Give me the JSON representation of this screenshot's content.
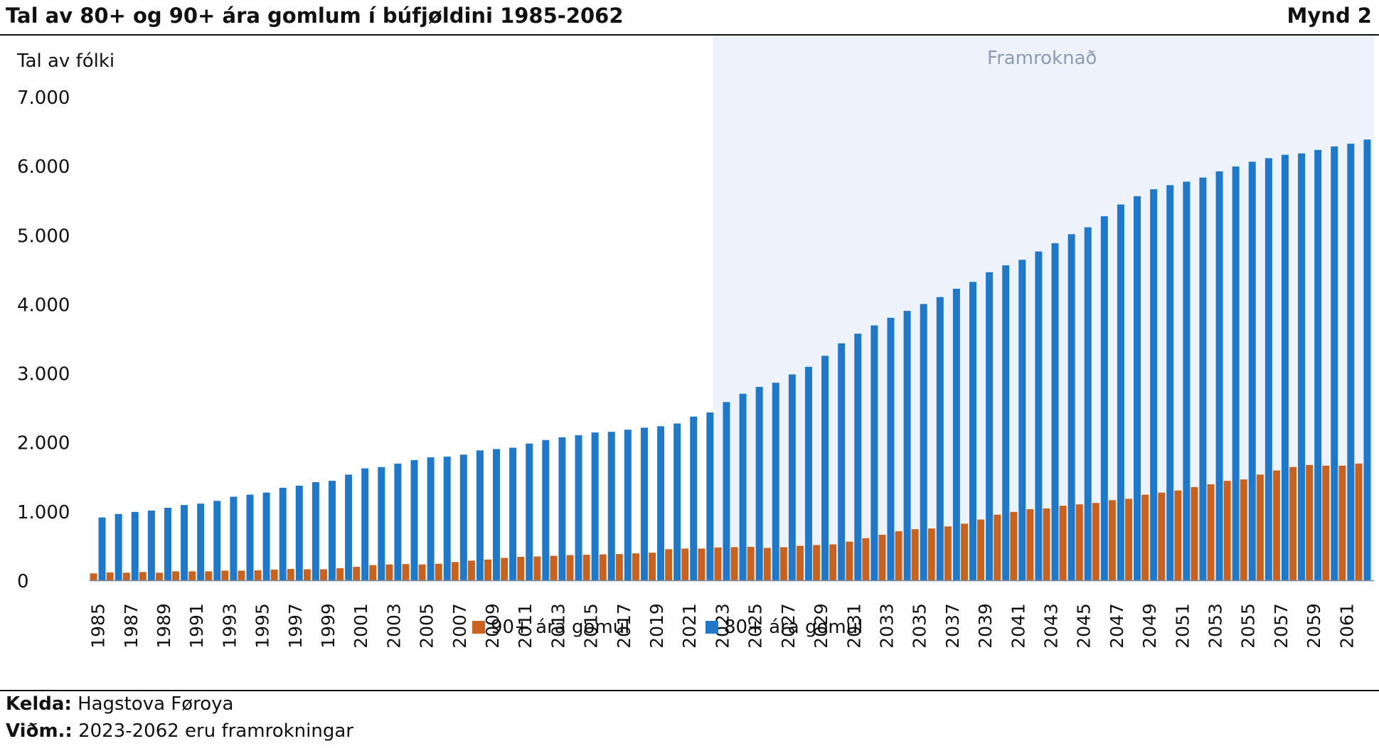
{
  "header": {
    "title": "Tal av 80+ og 90+ ára gomlum í búfjøldini 1985-2062",
    "figure_label": "Mynd 2"
  },
  "footer": {
    "source_label": "Kelda:",
    "source_text": "Hagstova Føroya",
    "note_label": "Viðm.:",
    "note_text": "2023-2062 eru framrokningar"
  },
  "colors": {
    "series_80": "#1f78c8",
    "series_90": "#c8621e",
    "projection_bg": "#eef2fa",
    "projection_text": "#8c9db3"
  },
  "chart_data": {
    "type": "bar",
    "ylabel": "Tal av fólki",
    "ylim": [
      0,
      7000
    ],
    "yticks": [
      0,
      1000,
      2000,
      3000,
      4000,
      5000,
      6000,
      7000
    ],
    "ytick_labels": [
      "0",
      "1.000",
      "2.000",
      "3.000",
      "4.000",
      "5.000",
      "6.000",
      "7.000"
    ],
    "projection_label": "Framroknað",
    "projection_start": "2023",
    "grid": false,
    "legend": "bottom",
    "categories": [
      "1985",
      "1986",
      "1987",
      "1988",
      "1989",
      "1990",
      "1991",
      "1992",
      "1993",
      "1994",
      "1995",
      "1996",
      "1997",
      "1998",
      "1999",
      "2000",
      "2001",
      "2002",
      "2003",
      "2004",
      "2005",
      "2006",
      "2007",
      "2008",
      "2009",
      "2010",
      "2011",
      "2012",
      "2013",
      "2014",
      "2015",
      "2016",
      "2017",
      "2018",
      "2019",
      "2020",
      "2021",
      "2022",
      "2023",
      "2024",
      "2025",
      "2026",
      "2027",
      "2028",
      "2029",
      "2030",
      "2031",
      "2032",
      "2033",
      "2034",
      "2035",
      "2036",
      "2037",
      "2038",
      "2039",
      "2040",
      "2041",
      "2042",
      "2043",
      "2044",
      "2045",
      "2046",
      "2047",
      "2048",
      "2049",
      "2050",
      "2051",
      "2052",
      "2053",
      "2054",
      "2055",
      "2056",
      "2057",
      "2058",
      "2059",
      "2060",
      "2061",
      "2062"
    ],
    "tick_labels": [
      "1985",
      "1987",
      "1989",
      "1991",
      "1993",
      "1995",
      "1997",
      "1999",
      "2001",
      "2003",
      "2005",
      "2007",
      "2009",
      "2011",
      "2013",
      "2015",
      "2017",
      "2019",
      "2021",
      "2023",
      "2025",
      "2027",
      "2029",
      "2031",
      "2033",
      "2035",
      "2037",
      "2039",
      "2041",
      "2043",
      "2045",
      "2047",
      "2049",
      "2051",
      "2053",
      "2055",
      "2057",
      "2059",
      "2061"
    ],
    "series": [
      {
        "name": "90+ ára gomul",
        "values": [
          100,
          115,
          110,
          120,
          110,
          130,
          130,
          130,
          140,
          140,
          145,
          155,
          165,
          160,
          160,
          175,
          195,
          220,
          230,
          235,
          230,
          240,
          265,
          285,
          300,
          325,
          340,
          345,
          355,
          365,
          370,
          375,
          380,
          390,
          400,
          450,
          460,
          460,
          475,
          480,
          485,
          470,
          480,
          500,
          510,
          520,
          560,
          610,
          660,
          710,
          740,
          750,
          780,
          820,
          880,
          950,
          990,
          1030,
          1040,
          1080,
          1100,
          1120,
          1160,
          1180,
          1240,
          1270,
          1300,
          1350,
          1390,
          1440,
          1460,
          1530,
          1590,
          1640,
          1670,
          1660,
          1660,
          1690
        ]
      },
      {
        "name": "80+ ára gomul",
        "values": [
          910,
          960,
          990,
          1010,
          1050,
          1090,
          1110,
          1150,
          1210,
          1240,
          1270,
          1340,
          1370,
          1420,
          1440,
          1530,
          1620,
          1640,
          1690,
          1740,
          1780,
          1790,
          1820,
          1880,
          1900,
          1920,
          1980,
          2030,
          2070,
          2100,
          2140,
          2150,
          2180,
          2210,
          2230,
          2270,
          2370,
          2430,
          2580,
          2700,
          2800,
          2860,
          2980,
          3090,
          3250,
          3430,
          3570,
          3690,
          3800,
          3900,
          4000,
          4100,
          4220,
          4320,
          4460,
          4560,
          4640,
          4760,
          4880,
          5010,
          5110,
          5270,
          5440,
          5560,
          5660,
          5720,
          5770,
          5830,
          5920,
          5990,
          6060,
          6110,
          6160,
          6180,
          6230,
          6280,
          6320,
          6380
        ]
      }
    ]
  }
}
